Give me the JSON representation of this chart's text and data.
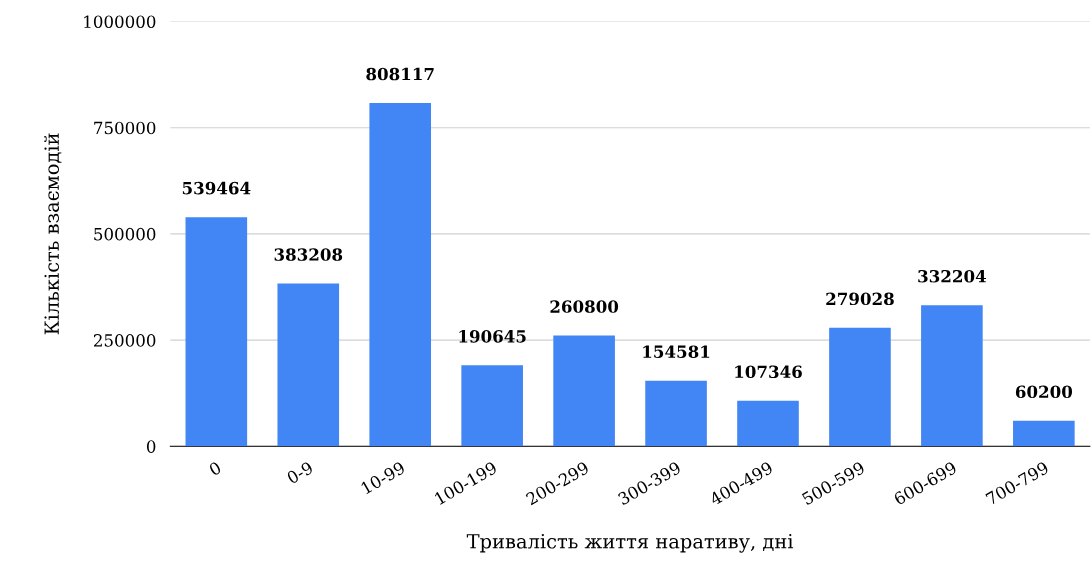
{
  "chart_data": {
    "type": "bar",
    "xlabel": "Тривалість життя наративу, дні",
    "ylabel": "Кількість взаємодій",
    "categories": [
      "0",
      "0-9",
      "10-99",
      "100-199",
      "200-299",
      "300-399",
      "400-499",
      "500-599",
      "600-699",
      "700-799"
    ],
    "values": [
      539464,
      383208,
      808117,
      190645,
      260800,
      154581,
      107346,
      279028,
      332204,
      60200
    ],
    "color": "#4285f4",
    "ylim": [
      0,
      1000000
    ],
    "yticks": [
      0,
      250000,
      500000,
      750000,
      1000000
    ],
    "grid": "y",
    "data_labels": true
  }
}
